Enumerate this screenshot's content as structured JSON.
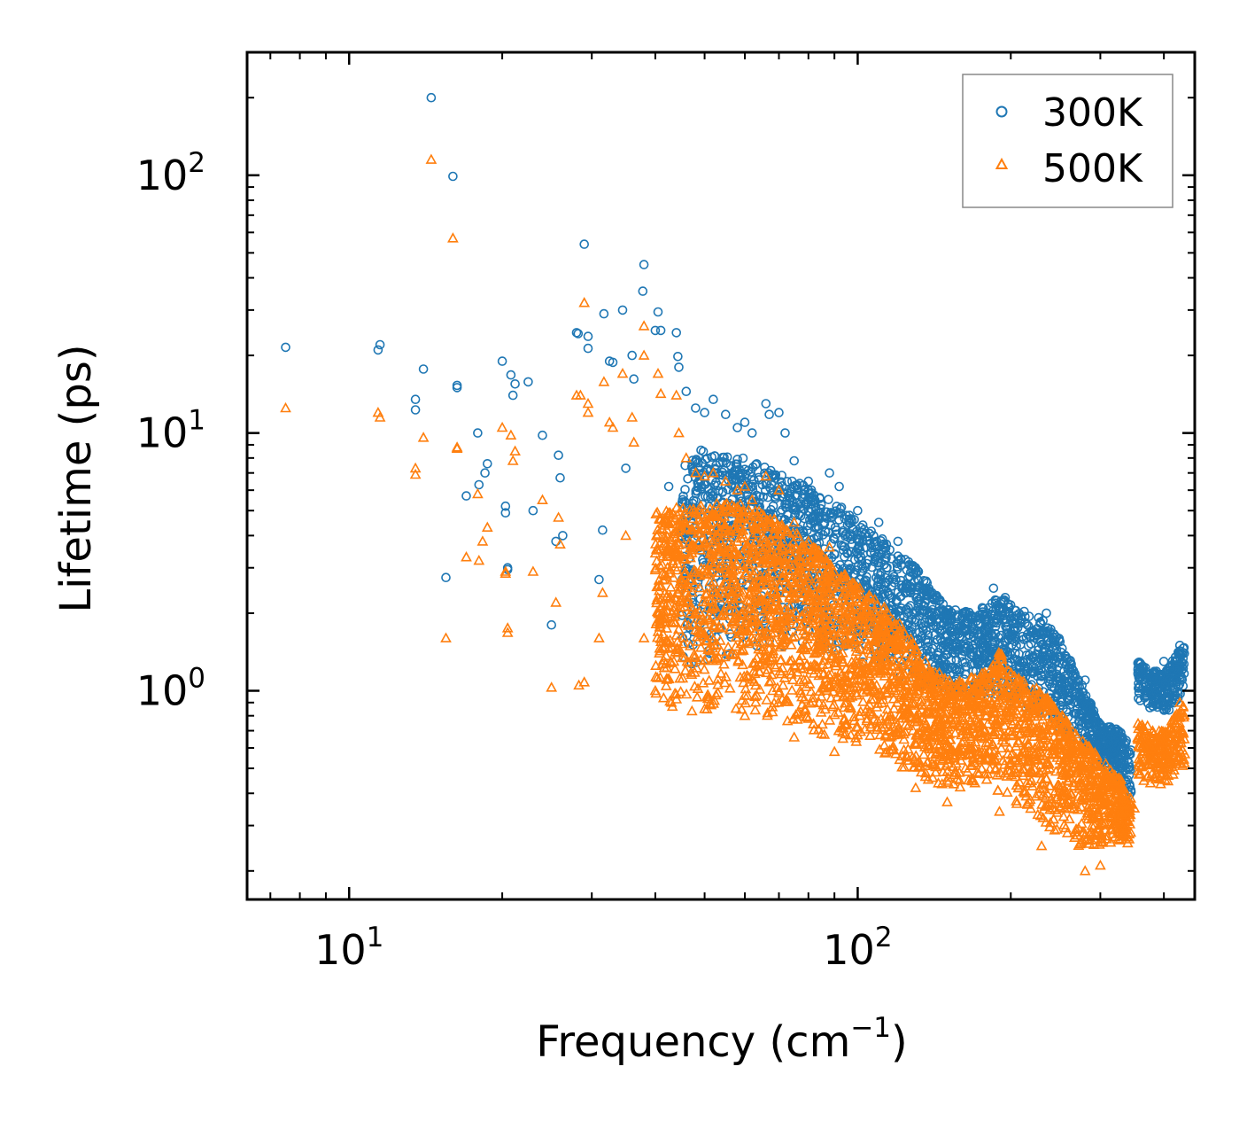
{
  "chart_data": {
    "type": "scatter",
    "title": "",
    "xlabel": "Frequency (cm",
    "xlabel_sup": "−1",
    "xlabel_close": ")",
    "ylabel": "Lifetime (ps)",
    "xscale": "log",
    "yscale": "log",
    "xlim": [
      6.3,
      460
    ],
    "ylim": [
      0.155,
      300
    ],
    "x_ticks": [
      {
        "value": 10,
        "base": "10",
        "exp": "1"
      },
      {
        "value": 100,
        "base": "10",
        "exp": "2"
      }
    ],
    "y_ticks": [
      {
        "value": 1,
        "base": "10",
        "exp": "0"
      },
      {
        "value": 10,
        "base": "10",
        "exp": "1"
      },
      {
        "value": 100,
        "base": "10",
        "exp": "2"
      }
    ],
    "legend": {
      "position": "top-right"
    },
    "series": [
      {
        "name": "300K",
        "marker": "circle",
        "color": "#1f77b4",
        "points": [
          [
            7.5,
            21.5
          ],
          [
            11.4,
            21.0
          ],
          [
            11.5,
            22.0
          ],
          [
            13.5,
            13.5
          ],
          [
            13.5,
            12.3
          ],
          [
            14.0,
            17.7
          ],
          [
            14.5,
            200.0
          ],
          [
            16.0,
            99.0
          ],
          [
            16.3,
            15.3
          ],
          [
            16.3,
            15.0
          ],
          [
            15.5,
            2.75
          ],
          [
            17.0,
            5.7
          ],
          [
            17.9,
            10.0
          ],
          [
            18.0,
            6.3
          ],
          [
            18.5,
            7.0
          ],
          [
            18.7,
            7.6
          ],
          [
            20.0,
            19.0
          ],
          [
            20.3,
            5.2
          ],
          [
            20.3,
            4.9
          ],
          [
            20.5,
            3.0
          ],
          [
            20.5,
            2.95
          ],
          [
            20.8,
            16.8
          ],
          [
            21.0,
            14.0
          ],
          [
            21.2,
            15.5
          ],
          [
            22.5,
            15.8
          ],
          [
            23.0,
            5.0
          ],
          [
            24.0,
            9.8
          ],
          [
            25.0,
            1.8
          ],
          [
            25.5,
            3.8
          ],
          [
            25.8,
            8.2
          ],
          [
            26.0,
            6.7
          ],
          [
            26.3,
            4.0
          ],
          [
            28.0,
            24.5
          ],
          [
            28.2,
            24.3
          ],
          [
            29.0,
            54.0
          ],
          [
            29.5,
            23.7
          ],
          [
            29.5,
            21.3
          ],
          [
            31.0,
            2.7
          ],
          [
            31.5,
            4.2
          ],
          [
            31.7,
            29.0
          ],
          [
            32.5,
            19.0
          ],
          [
            33.0,
            18.8
          ],
          [
            34.5,
            30.0
          ],
          [
            35.0,
            7.3
          ],
          [
            36.0,
            20.0
          ],
          [
            36.3,
            16.2
          ],
          [
            38.0,
            45.0
          ],
          [
            37.8,
            35.5
          ],
          [
            40.5,
            29.5
          ],
          [
            40.0,
            25.0
          ],
          [
            41.0,
            25.0
          ],
          [
            42.5,
            6.2
          ],
          [
            44.0,
            24.5
          ],
          [
            44.5,
            18.0
          ],
          [
            44.3,
            19.8
          ],
          [
            45.0,
            4.0
          ],
          [
            46.0,
            14.5
          ],
          [
            48.0,
            12.5
          ],
          [
            50.0,
            12.0
          ],
          [
            52.0,
            13.5
          ],
          [
            55.0,
            11.8
          ],
          [
            58.0,
            10.5
          ],
          [
            60.0,
            11.0
          ],
          [
            62.0,
            10.0
          ],
          [
            66.0,
            13.0
          ],
          [
            67.0,
            11.8
          ],
          [
            70.0,
            12.0
          ],
          [
            72.0,
            10.0
          ],
          [
            75.0,
            7.8
          ],
          [
            80.0,
            6.5
          ],
          [
            88.0,
            7.0
          ],
          [
            92.0,
            6.2
          ],
          [
            100.0,
            5.0
          ],
          [
            110.0,
            4.5
          ],
          [
            120.0,
            3.8
          ],
          [
            130.0,
            3.0
          ],
          [
            140.0,
            2.4
          ],
          [
            150.0,
            2.0
          ],
          [
            165.0,
            1.9
          ],
          [
            180.0,
            2.0
          ],
          [
            185.0,
            2.5
          ],
          [
            195.0,
            2.3
          ],
          [
            210.0,
            1.9
          ],
          [
            235.0,
            2.0
          ],
          [
            250.0,
            1.55
          ],
          [
            280.0,
            1.1
          ],
          [
            300.0,
            0.7
          ],
          [
            330.0,
            0.55
          ],
          [
            360.0,
            1.2
          ],
          [
            400.0,
            1.3
          ],
          [
            430.0,
            1.5
          ]
        ],
        "band": {
          "x_min": 45,
          "x_max": 345,
          "count": 2400,
          "ceiling": [
            [
              45,
              9.0
            ],
            [
              60,
              8.0
            ],
            [
              70,
              7.0
            ],
            [
              90,
              5.5
            ],
            [
              110,
              4.0
            ],
            [
              130,
              3.0
            ],
            [
              150,
              2.1
            ],
            [
              170,
              2.0
            ],
            [
              190,
              2.35
            ],
            [
              200,
              2.15
            ],
            [
              230,
              1.9
            ],
            [
              250,
              1.6
            ],
            [
              270,
              1.15
            ],
            [
              300,
              0.75
            ],
            [
              330,
              0.7
            ],
            [
              345,
              0.6
            ]
          ],
          "floor": [
            [
              45,
              1.2
            ],
            [
              60,
              1.4
            ],
            [
              80,
              1.5
            ],
            [
              110,
              1.2
            ],
            [
              140,
              1.0
            ],
            [
              170,
              0.95
            ],
            [
              200,
              0.9
            ],
            [
              230,
              0.75
            ],
            [
              260,
              0.65
            ],
            [
              300,
              0.5
            ],
            [
              330,
              0.45
            ],
            [
              345,
              0.35
            ]
          ],
          "x2_min": 355,
          "x2_max": 440,
          "count2": 240,
          "ceiling2": [
            [
              355,
              1.3
            ],
            [
              400,
              1.15
            ],
            [
              440,
              1.6
            ]
          ],
          "floor2": [
            [
              355,
              0.9
            ],
            [
              400,
              0.8
            ],
            [
              440,
              0.95
            ]
          ]
        }
      },
      {
        "name": "500K",
        "marker": "triangle",
        "color": "#ff7f0e",
        "points": [
          [
            7.5,
            12.5
          ],
          [
            11.4,
            12.0
          ],
          [
            11.5,
            11.5
          ],
          [
            13.5,
            7.3
          ],
          [
            13.5,
            6.9
          ],
          [
            14.0,
            9.6
          ],
          [
            14.5,
            115.0
          ],
          [
            16.0,
            57.0
          ],
          [
            16.3,
            8.8
          ],
          [
            16.3,
            8.7
          ],
          [
            15.5,
            1.6
          ],
          [
            17.0,
            3.3
          ],
          [
            17.9,
            5.8
          ],
          [
            18.0,
            3.2
          ],
          [
            18.3,
            3.8
          ],
          [
            18.7,
            4.3
          ],
          [
            20.0,
            10.5
          ],
          [
            20.3,
            2.9
          ],
          [
            20.3,
            2.85
          ],
          [
            20.5,
            1.75
          ],
          [
            20.5,
            1.68
          ],
          [
            20.8,
            9.8
          ],
          [
            21.0,
            7.8
          ],
          [
            21.2,
            8.5
          ],
          [
            23.0,
            2.9
          ],
          [
            24.0,
            5.5
          ],
          [
            25.0,
            1.03
          ],
          [
            25.5,
            2.2
          ],
          [
            25.8,
            4.7
          ],
          [
            26.0,
            3.7
          ],
          [
            28.0,
            14.0
          ],
          [
            28.5,
            14.0
          ],
          [
            29.0,
            32.0
          ],
          [
            29.5,
            13.0
          ],
          [
            29.5,
            12.0
          ],
          [
            31.0,
            1.6
          ],
          [
            31.5,
            2.4
          ],
          [
            31.7,
            15.8
          ],
          [
            32.5,
            11.0
          ],
          [
            33.0,
            10.5
          ],
          [
            34.5,
            17.0
          ],
          [
            35.0,
            4.0
          ],
          [
            36.0,
            11.5
          ],
          [
            36.3,
            9.2
          ],
          [
            38.0,
            26.0
          ],
          [
            38.0,
            20.0
          ],
          [
            40.5,
            17.0
          ],
          [
            41.0,
            14.2
          ],
          [
            42.5,
            3.5
          ],
          [
            44.0,
            14.0
          ],
          [
            44.5,
            10.0
          ],
          [
            46.0,
            8.0
          ],
          [
            48.0,
            7.0
          ],
          [
            50.0,
            6.8
          ],
          [
            52.0,
            7.0
          ],
          [
            55.0,
            6.5
          ],
          [
            58.0,
            6.0
          ],
          [
            60.0,
            6.2
          ],
          [
            62.0,
            5.5
          ],
          [
            66.0,
            6.8
          ],
          [
            70.0,
            6.0
          ],
          [
            75.0,
            4.5
          ],
          [
            80.0,
            3.8
          ],
          [
            88.0,
            3.6
          ],
          [
            28.3,
            1.05
          ],
          [
            29.0,
            1.08
          ],
          [
            38.0,
            1.6
          ],
          [
            40.0,
            1.0
          ],
          [
            43.0,
            0.9
          ],
          [
            50.0,
            0.85
          ],
          [
            60.0,
            0.8
          ],
          [
            75.0,
            0.66
          ],
          [
            90.0,
            0.58
          ],
          [
            130.0,
            0.42
          ],
          [
            150.0,
            0.37
          ],
          [
            190.0,
            0.34
          ],
          [
            230.0,
            0.25
          ],
          [
            280.0,
            0.2
          ],
          [
            300.0,
            0.21
          ],
          [
            330.0,
            0.33
          ],
          [
            350.0,
            0.35
          ],
          [
            430.0,
            0.9
          ]
        ],
        "band": {
          "x_min": 40,
          "x_max": 345,
          "count": 3200,
          "ceiling": [
            [
              40,
              5.0
            ],
            [
              55,
              5.5
            ],
            [
              65,
              5.0
            ],
            [
              80,
              3.8
            ],
            [
              100,
              2.6
            ],
            [
              120,
              1.9
            ],
            [
              140,
              1.2
            ],
            [
              160,
              1.1
            ],
            [
              180,
              1.2
            ],
            [
              190,
              1.45
            ],
            [
              200,
              1.2
            ],
            [
              230,
              1.0
            ],
            [
              260,
              0.75
            ],
            [
              300,
              0.55
            ],
            [
              330,
              0.45
            ],
            [
              345,
              0.38
            ]
          ],
          "floor": [
            [
              40,
              0.85
            ],
            [
              55,
              0.8
            ],
            [
              70,
              0.75
            ],
            [
              90,
              0.65
            ],
            [
              110,
              0.55
            ],
            [
              130,
              0.45
            ],
            [
              150,
              0.42
            ],
            [
              180,
              0.42
            ],
            [
              200,
              0.38
            ],
            [
              220,
              0.32
            ],
            [
              250,
              0.28
            ],
            [
              280,
              0.23
            ],
            [
              300,
              0.25
            ],
            [
              330,
              0.26
            ],
            [
              345,
              0.25
            ]
          ],
          "x2_min": 355,
          "x2_max": 440,
          "count2": 240,
          "ceiling2": [
            [
              355,
              0.75
            ],
            [
              400,
              0.7
            ],
            [
              440,
              0.9
            ]
          ],
          "floor2": [
            [
              355,
              0.45
            ],
            [
              400,
              0.42
            ],
            [
              440,
              0.5
            ]
          ]
        }
      }
    ]
  }
}
